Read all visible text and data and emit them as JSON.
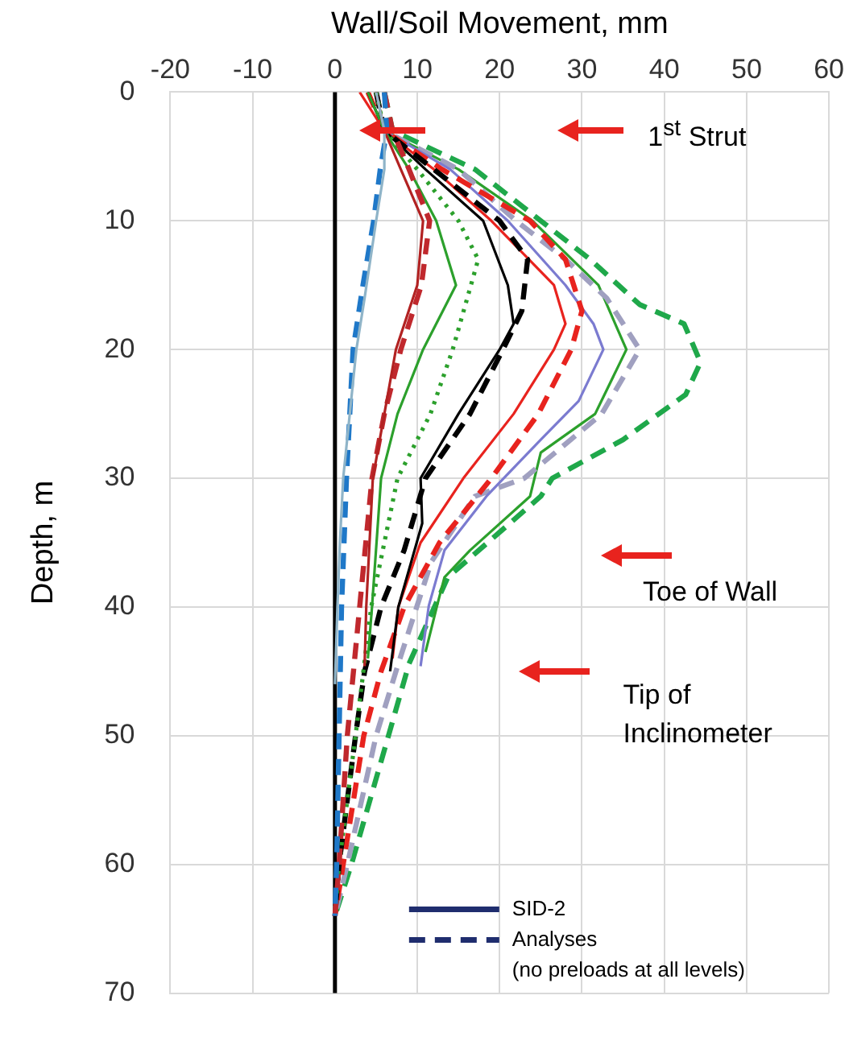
{
  "chart_data": {
    "type": "line",
    "xlabel": "Wall/Soil Movement, mm",
    "ylabel": "Depth, m",
    "xlim": [
      -20,
      60
    ],
    "xticks": [
      -20,
      -10,
      0,
      10,
      20,
      30,
      40,
      50,
      60
    ],
    "ylim": [
      70,
      0
    ],
    "yticks": [
      0,
      10,
      20,
      30,
      40,
      50,
      60,
      70
    ],
    "grid": true,
    "legend": "bottom right",
    "series": [
      {
        "name": "SID-2",
        "color": "#1f2d6e",
        "line_style": "solid"
      },
      {
        "name": "Analyses",
        "color": "#1f2d6e",
        "line_style": "dashed"
      },
      {
        "color": "#8fb4c8",
        "line_style": "solid",
        "x": [
          5,
          6,
          6,
          5,
          3.6,
          2.6,
          1.8,
          1,
          0.6,
          0.3,
          0
        ],
        "values": [
          0,
          3,
          6,
          10,
          16,
          20,
          25,
          30,
          35,
          40,
          46
        ]
      },
      {
        "color": "#1f78c8",
        "line_style": "dashed",
        "x": [
          6,
          6.3,
          5.5,
          4.7,
          3.4,
          2.2,
          1.4,
          0.8,
          0.5,
          0.2,
          0
        ],
        "values": [
          0,
          3,
          6,
          10,
          15,
          20,
          30,
          40,
          50,
          60,
          64
        ]
      },
      {
        "color": "#b22222",
        "line_style": "solid",
        "x": [
          5,
          6,
          8,
          10.7,
          10,
          7.4,
          6,
          4.6,
          3.8,
          3.6
        ],
        "values": [
          0,
          3,
          6,
          10,
          15,
          20,
          25,
          30,
          40,
          44.6
        ]
      },
      {
        "color": "#c0282d",
        "line_style": "dashed",
        "x": [
          6,
          7,
          9,
          11.5,
          10.5,
          8,
          6,
          4.5,
          3,
          1.5,
          0.5,
          0
        ],
        "values": [
          0,
          3,
          6,
          10,
          15,
          20,
          25,
          30,
          40,
          50,
          60,
          64
        ]
      },
      {
        "color": "#2ca02c",
        "line_style": "solid",
        "x": [
          4,
          6,
          9,
          12.3,
          14.7,
          10.7,
          7.6,
          5.6,
          4.5,
          4
        ],
        "values": [
          0,
          3,
          6,
          10,
          15,
          20,
          25,
          30,
          40,
          44
        ]
      },
      {
        "color": "#2ca02c",
        "line_style": "dotted",
        "x": [
          5,
          6,
          10,
          15,
          17.4,
          14.3,
          11.6,
          7.6,
          4.4,
          2.5,
          0.5,
          0
        ],
        "values": [
          0,
          3,
          6,
          10,
          13,
          20,
          25,
          30,
          40,
          50,
          60,
          64
        ]
      },
      {
        "color": "#000000",
        "line_style": "solid",
        "x": [
          4,
          6,
          11,
          18,
          21,
          21.7,
          20,
          15,
          10.4,
          10.6,
          7.7,
          6.7
        ],
        "values": [
          0,
          3,
          6,
          10,
          15,
          18,
          20,
          25,
          30,
          33.5,
          40,
          45
        ]
      },
      {
        "color": "#000000",
        "line_style": "dashed",
        "x": [
          5,
          6,
          12,
          20,
          23.4,
          22.7,
          20.4,
          16.4,
          11,
          8.4,
          5.6,
          3.6,
          2.5,
          0.5,
          0
        ],
        "values": [
          0,
          3,
          6,
          10,
          13,
          17,
          20,
          25,
          30,
          35.6,
          40,
          45,
          50,
          60,
          64
        ]
      },
      {
        "color": "#e8231e",
        "line_style": "solid",
        "x": [
          3,
          6,
          12,
          19,
          26.6,
          28,
          26.6,
          21.7,
          15.6,
          10.4,
          7.7,
          7
        ],
        "values": [
          0,
          3,
          6,
          10,
          15,
          18,
          20,
          25,
          30,
          35,
          40,
          44
        ]
      },
      {
        "color": "#e8231e",
        "line_style": "dashed",
        "x": [
          4,
          6,
          13,
          23.7,
          28,
          30,
          28.7,
          24.7,
          19,
          12.7,
          8.4,
          5.6,
          3.5,
          1,
          0
        ],
        "values": [
          0,
          3,
          6,
          10,
          13,
          17,
          20,
          25,
          30,
          35,
          40,
          45,
          50,
          60,
          64
        ]
      },
      {
        "color": "#7b7bd0",
        "line_style": "solid",
        "x": [
          4,
          6,
          14,
          21,
          28,
          31.4,
          32.6,
          29.6,
          25,
          18.4,
          13.3,
          11.4,
          10.4
        ],
        "values": [
          0,
          3,
          6,
          10,
          15,
          18,
          20,
          24,
          27,
          31.4,
          35.6,
          39.9,
          44.6
        ]
      },
      {
        "color": "#a0a0c0",
        "line_style": "dashed",
        "x": [
          5,
          6,
          15,
          22,
          28,
          33,
          37,
          32.4,
          23,
          17,
          11.7,
          7.7,
          5,
          1.5,
          0
        ],
        "values": [
          0,
          3,
          6,
          10,
          13,
          16,
          20,
          25,
          30,
          31.4,
          36.5,
          44.4,
          50,
          60,
          64
        ]
      },
      {
        "color": "#2ca02c",
        "line_style": "solid",
        "x": [
          5,
          6,
          15,
          24,
          32,
          35.4,
          31.6,
          25,
          23.7,
          16.4,
          13.3,
          12.4,
          11
        ],
        "values": [
          0,
          3,
          6,
          10,
          15,
          20,
          25,
          28,
          31.4,
          35.6,
          37.7,
          39.9,
          43.5
        ]
      },
      {
        "color": "#1fa84a",
        "line_style": "dashed",
        "x": [
          6,
          7,
          17,
          25,
          31,
          37,
          42.4,
          44.4,
          42.6,
          35,
          26.4,
          25,
          13.7,
          9,
          6.5,
          2,
          0
        ],
        "values": [
          0,
          3,
          6,
          10,
          13,
          16.5,
          18,
          21,
          23.5,
          27,
          30,
          31.4,
          37.7,
          44.4,
          50,
          60,
          64
        ]
      }
    ],
    "ref_lines": [
      {
        "axis": "x",
        "value": 0,
        "color": "#000000"
      }
    ],
    "annotations": [
      "1$^{st}$ Strut",
      "Toe of Wall",
      "Tip of\nInclinometer",
      "(no preloads at all levels)"
    ]
  }
}
